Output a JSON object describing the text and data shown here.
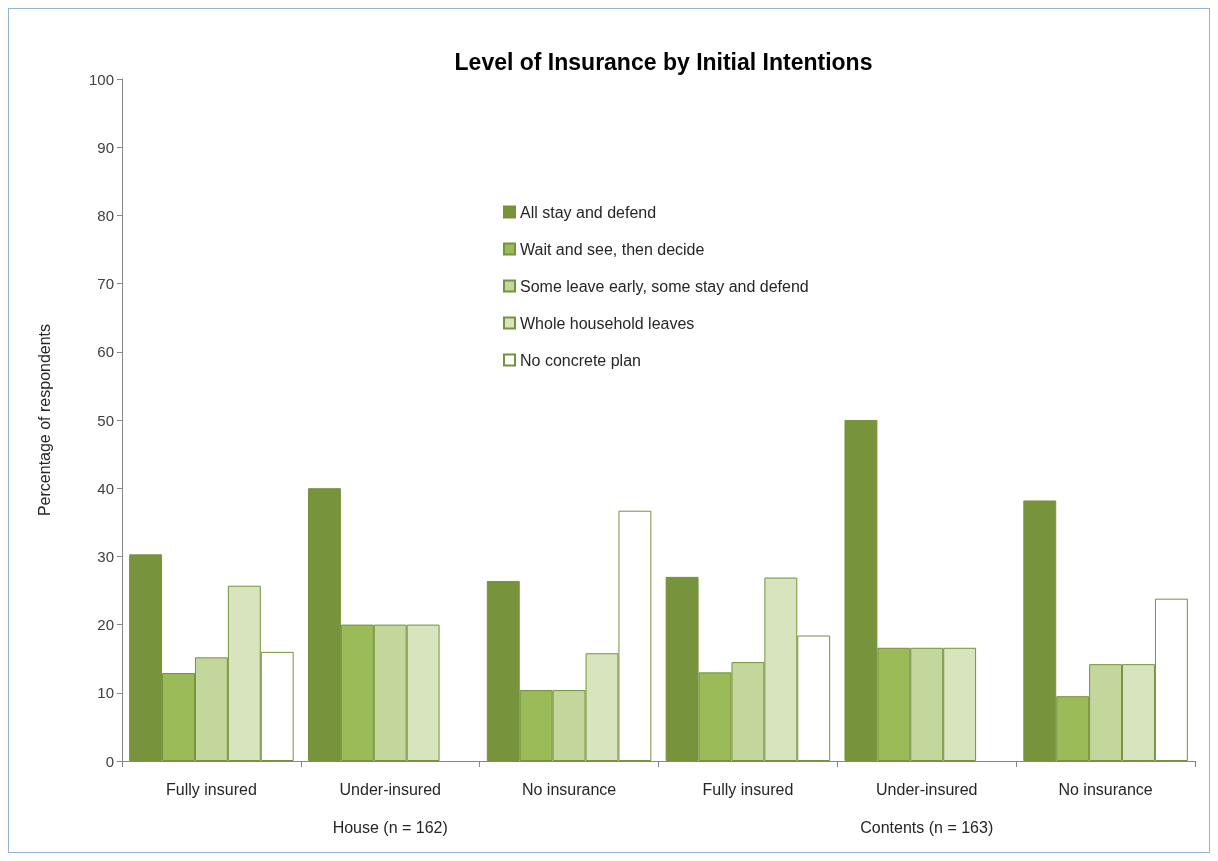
{
  "chart_data": {
    "type": "bar",
    "title": "Level of Insurance by Initial Intentions",
    "ylabel": "Percentage of respondents",
    "categories": [
      "Fully insured",
      "Under-insured",
      "No insurance",
      "Fully insured",
      "Under-insured",
      "No insurance"
    ],
    "series": [
      {
        "name": "All stay and defend",
        "color": "#77933c",
        "values": [
          30.3,
          40,
          26.4,
          27,
          50,
          38.2
        ]
      },
      {
        "name": "Wait and see, then decide",
        "color": "#9bbb59",
        "values": [
          12.9,
          20,
          10.4,
          13,
          16.6,
          9.5
        ]
      },
      {
        "name": "Some leave early, some stay and defend",
        "color": "#c3d69b",
        "values": [
          15.2,
          20,
          10.4,
          14.5,
          16.6,
          14.2
        ]
      },
      {
        "name": "Whole household leaves",
        "color": "#d7e4bd",
        "values": [
          25.7,
          20,
          15.8,
          26.9,
          16.6,
          14.2
        ]
      },
      {
        "name": "No concrete plan",
        "color": "#ffffff",
        "values": [
          16,
          null,
          36.7,
          18.4,
          null,
          23.8
        ]
      }
    ],
    "ylim": [
      0,
      100
    ],
    "yticks": [
      0,
      10,
      20,
      30,
      40,
      50,
      60,
      70,
      80,
      90,
      100
    ],
    "grid": false,
    "legend": "top",
    "annotations": [
      "House (n = 162)",
      "Contents (n = 163)"
    ]
  }
}
